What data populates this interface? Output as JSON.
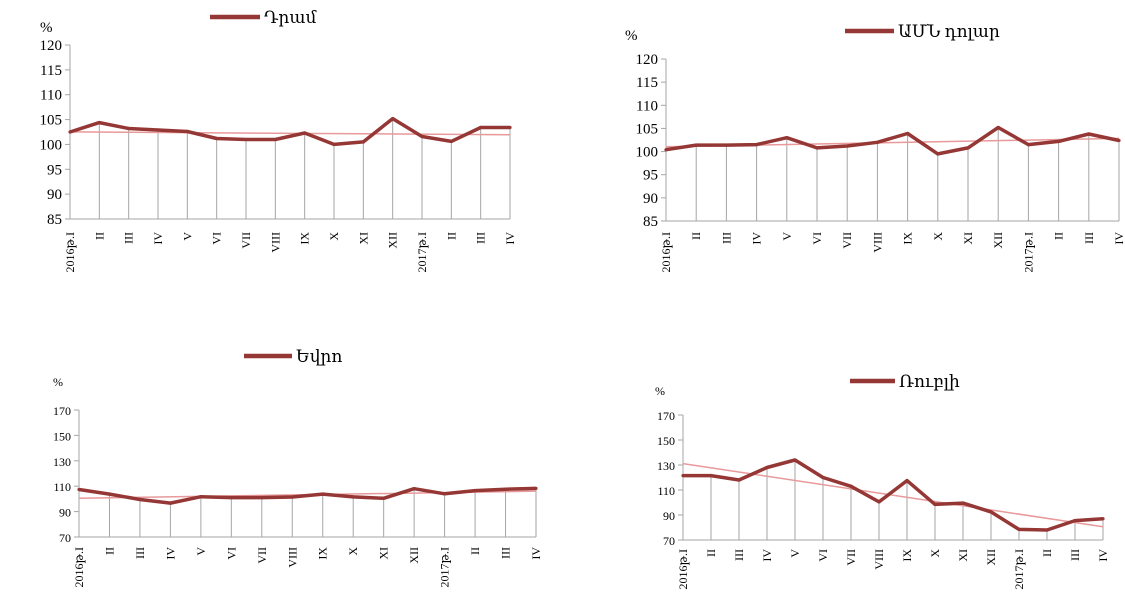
{
  "colors": {
    "series": "#953735",
    "trend": "#e8999a",
    "axis": "#a6a6a6"
  },
  "chart_data": [
    {
      "type": "line",
      "unit": "%",
      "legend": "Դրամ",
      "categories": [
        "2016թ.I",
        "II",
        "III",
        "IV",
        "V",
        "VI",
        "VII",
        "VIII",
        "IX",
        "X",
        "XI",
        "XII",
        "2017թ.I",
        "II",
        "III",
        "IV"
      ],
      "series": [
        {
          "name": "Դրամ",
          "values": [
            102.5,
            104.4,
            103.2,
            102.9,
            102.6,
            101.2,
            101.0,
            101.0,
            102.3,
            100.0,
            100.5,
            105.2,
            101.6,
            100.6,
            103.4,
            103.4
          ]
        }
      ],
      "trendline": true,
      "ylim": [
        85,
        120
      ],
      "yticks": [
        85,
        90,
        95,
        100,
        105,
        110,
        115,
        120
      ]
    },
    {
      "type": "line",
      "unit": "%",
      "legend": "ԱՄՆ դոլար",
      "categories": [
        "2016թ.I",
        "II",
        "III",
        "IV",
        "V",
        "VI",
        "VII",
        "VIII",
        "IX",
        "X",
        "XI",
        "XII",
        "2017թ.I",
        "II",
        "III",
        "IV"
      ],
      "series": [
        {
          "name": "ԱՄՆ դոլար",
          "values": [
            100.4,
            101.4,
            101.4,
            101.5,
            103.0,
            100.8,
            101.2,
            102.0,
            103.9,
            99.5,
            100.8,
            105.2,
            101.5,
            102.2,
            103.8,
            102.4
          ]
        }
      ],
      "trendline": true,
      "ylim": [
        85,
        120
      ],
      "yticks": [
        85,
        90,
        95,
        100,
        105,
        110,
        115,
        120
      ]
    },
    {
      "type": "line",
      "unit": "%",
      "legend": "Եվրո",
      "categories": [
        "2016թ.I",
        "II",
        "III",
        "IV",
        "V",
        "VI",
        "VII",
        "VIII",
        "IX",
        "X",
        "XI",
        "XII",
        "2017թ.I",
        "II",
        "III",
        "IV"
      ],
      "series": [
        {
          "name": "Եվրո",
          "values": [
            107.4,
            103.8,
            99.5,
            96.7,
            101.7,
            101.0,
            101.0,
            101.5,
            103.8,
            101.6,
            100.5,
            108.0,
            104.0,
            106.5,
            107.6,
            108.3
          ]
        }
      ],
      "trendline": true,
      "ylim": [
        70,
        170
      ],
      "yticks": [
        70,
        90,
        110,
        130,
        150,
        170
      ]
    },
    {
      "type": "line",
      "unit": "%",
      "legend": "Ռուբլի",
      "categories": [
        "2016թ.I",
        "II",
        "III",
        "IV",
        "V",
        "VI",
        "VII",
        "VIII",
        "IX",
        "X",
        "XI",
        "XII",
        "2017թ.I",
        "II",
        "III",
        "IV"
      ],
      "series": [
        {
          "name": "Ռուբլի",
          "values": [
            121.5,
            121.5,
            118.0,
            128.0,
            134.0,
            120.0,
            113.0,
            100.5,
            117.5,
            98.5,
            99.5,
            92.5,
            78.5,
            78.0,
            85.5,
            87.0
          ]
        }
      ],
      "trendline": true,
      "ylim": [
        70,
        170
      ],
      "yticks": [
        70,
        90,
        110,
        130,
        150,
        170
      ]
    }
  ]
}
